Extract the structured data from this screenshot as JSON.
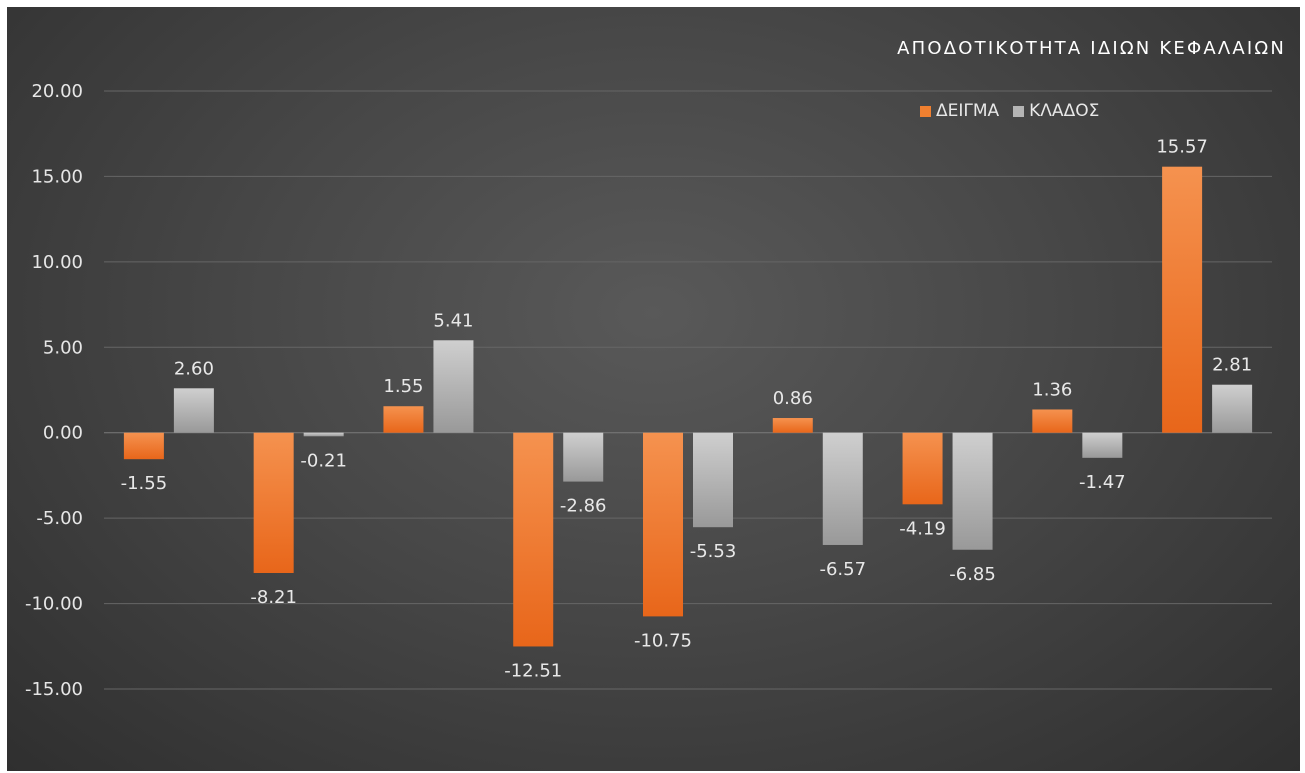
{
  "chart_data": {
    "type": "bar",
    "title": "ΑΠΟΔΟΤΙΚΟΤΗΤΑ ΙΔΙΩΝ ΚΕΦΑΛΑΙΩΝ",
    "xlabel": "",
    "ylabel": "",
    "ylim": [
      -15,
      20
    ],
    "yticks": [
      "20.00",
      "15.00",
      "10.00",
      "5.00",
      "0.00",
      "-5.00",
      "-10.00",
      "-15.00"
    ],
    "grid": true,
    "legend_position": "top-right",
    "series": [
      {
        "name": "ΔΕΙΓΜΑ",
        "color": "#f08030",
        "values": [
          -1.55,
          -8.21,
          1.55,
          -12.51,
          -10.75,
          0.86,
          -4.19,
          1.36,
          15.57
        ],
        "labels": [
          "-1.55",
          "-8.21",
          "1.55",
          "-12.51",
          "-10.75",
          "0.86",
          "-4.19",
          "1.36",
          "15.57"
        ]
      },
      {
        "name": "ΚΛΑΔΟΣ",
        "color": "#b4b4b4",
        "values": [
          2.6,
          -0.21,
          5.41,
          -2.86,
          -5.53,
          -6.57,
          -6.85,
          -1.47,
          2.81
        ],
        "labels": [
          "2.60",
          "-0.21",
          "5.41",
          "-2.86",
          "-5.53",
          "-6.57",
          "-6.85",
          "-1.47",
          "2.81"
        ]
      }
    ]
  }
}
